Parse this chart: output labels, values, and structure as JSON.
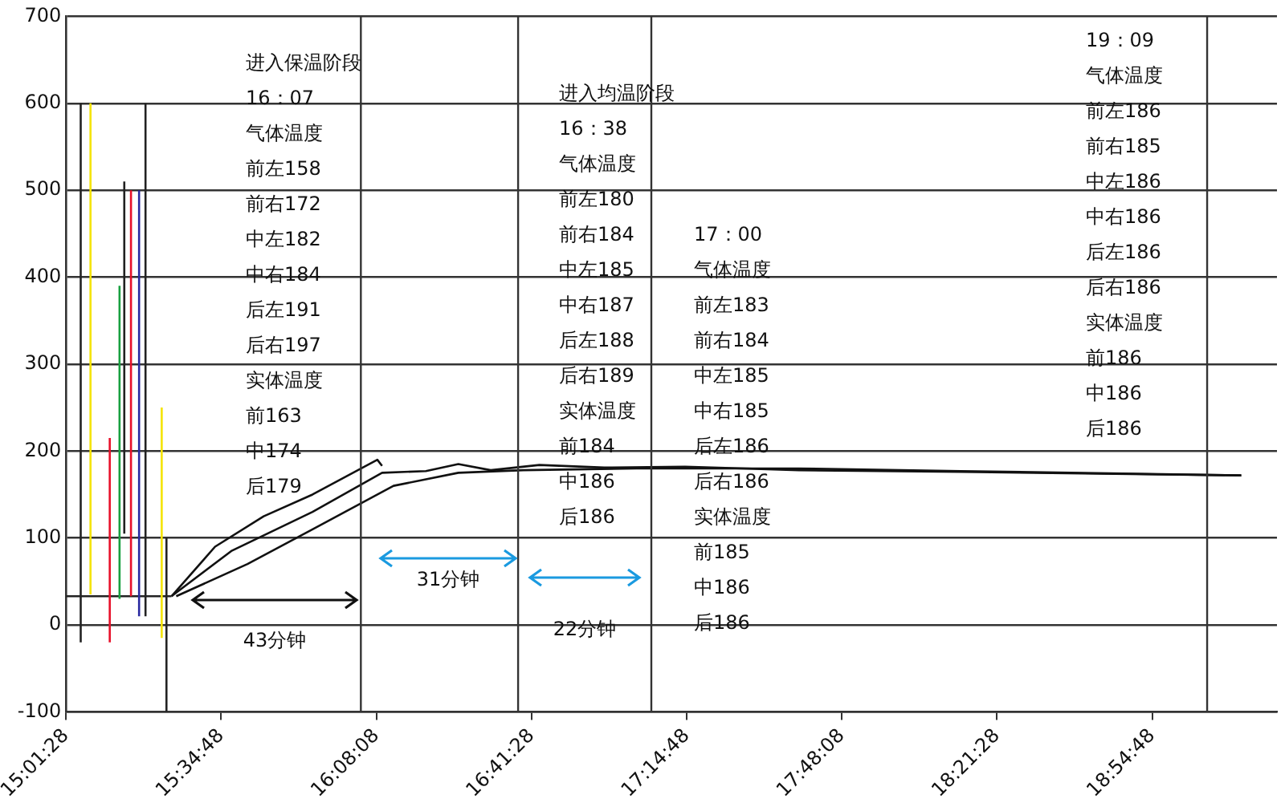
{
  "chart_data": {
    "type": "line",
    "marker": "none",
    "grid": "y",
    "legend": false,
    "xlim": [
      15.02444,
      19.36
    ],
    "ylim": [
      -100,
      700
    ],
    "yticks": [
      -100,
      0,
      100,
      200,
      300,
      400,
      500,
      600,
      700
    ],
    "xticks": [
      {
        "value": 15.02444,
        "label": "15:01:28"
      },
      {
        "value": 15.58,
        "label": "15:34:48"
      },
      {
        "value": 16.13556,
        "label": "16:08:08"
      },
      {
        "value": 16.69111,
        "label": "16:41:28"
      },
      {
        "value": 17.24667,
        "label": "17:14:48"
      },
      {
        "value": 17.80222,
        "label": "17:48:08"
      },
      {
        "value": 18.35778,
        "label": "18:21:28"
      },
      {
        "value": 18.91333,
        "label": "18:54:48"
      }
    ],
    "series": [
      {
        "color": "#222222",
        "x": [
          15.077,
          15.077
        ],
        "values": [
          -20,
          600
        ]
      },
      {
        "color": "#f5e400",
        "x": [
          15.112,
          15.112
        ],
        "values": [
          35,
          600
        ]
      },
      {
        "color": "#e8102a",
        "x": [
          15.181,
          15.181
        ],
        "values": [
          -20,
          215
        ]
      },
      {
        "color": "#18a040",
        "x": [
          15.216,
          15.216
        ],
        "values": [
          30,
          390
        ]
      },
      {
        "color": "#222222",
        "x": [
          15.233,
          15.233
        ],
        "values": [
          105,
          510
        ]
      },
      {
        "color": "#e8102a",
        "x": [
          15.257,
          15.257
        ],
        "values": [
          33,
          500
        ]
      },
      {
        "color": "#2a2aa0",
        "x": [
          15.286,
          15.286
        ],
        "values": [
          10,
          500
        ]
      },
      {
        "color": "#222222",
        "x": [
          15.309,
          15.309
        ],
        "values": [
          10,
          600
        ]
      },
      {
        "color": "#f5e400",
        "x": [
          15.367,
          15.367
        ],
        "values": [
          -15,
          250
        ]
      },
      {
        "color": "#222222",
        "x": [
          15.384,
          15.384
        ],
        "values": [
          -100,
          100
        ]
      },
      {
        "color": "#222222",
        "x": [
          15.02444,
          15.402
        ],
        "values": [
          33,
          33
        ]
      },
      {
        "color": "#111111",
        "x": [
          15.402,
          15.558,
          15.732,
          15.907,
          16.139,
          16.156
        ],
        "values": [
          33,
          90,
          125,
          150,
          190,
          183
        ]
      },
      {
        "color": "#111111",
        "x": [
          15.402,
          15.616,
          15.907,
          16.156,
          16.313,
          16.429,
          16.545,
          16.719,
          16.951,
          17.241,
          17.648,
          18.228,
          19.232
        ],
        "values": [
          33,
          85,
          130,
          175,
          177,
          185,
          178,
          184,
          181,
          182,
          178,
          176,
          172
        ]
      },
      {
        "color": "#111111",
        "x": [
          15.419,
          15.674,
          15.907,
          16.197,
          16.429,
          16.661,
          17.067,
          17.648,
          18.228,
          19.232
        ],
        "values": [
          33,
          70,
          110,
          160,
          175,
          178,
          180,
          180,
          177,
          172
        ]
      }
    ],
    "ref_lines": [
      {
        "axis": "x",
        "value": 16.08,
        "color": "#333333"
      },
      {
        "axis": "x",
        "value": 16.643,
        "color": "#333333"
      },
      {
        "axis": "x",
        "value": 17.12,
        "color": "#333333"
      },
      {
        "axis": "x",
        "value": 19.11,
        "color": "#333333"
      }
    ],
    "annotations": [
      "43分钟",
      "31分钟",
      "22分钟",
      "进入保温阶段",
      "16：07",
      "气体温度",
      "前左158",
      "前右172",
      "中左182",
      "中右184",
      "后左191",
      "后右197",
      "实体温度",
      "前163",
      "中174",
      "后179",
      "进入均温阶段",
      "16：38",
      "气体温度",
      "前左180",
      "前右184",
      "中左185",
      "中右187",
      "后左188",
      "后右189",
      "实体温度",
      "前184",
      "中186",
      "后186",
      "17：00",
      "气体温度",
      "前左183",
      "前右184",
      "中左185",
      "中右185",
      "后左186",
      "后右186",
      "实体温度",
      "前185",
      "中186",
      "后186",
      "19：09",
      "气体温度",
      "前左186",
      "前右185",
      "中左186",
      "中右186",
      "后左186",
      "后右186",
      "实体温度",
      "前186",
      "中186",
      "后186"
    ]
  }
}
